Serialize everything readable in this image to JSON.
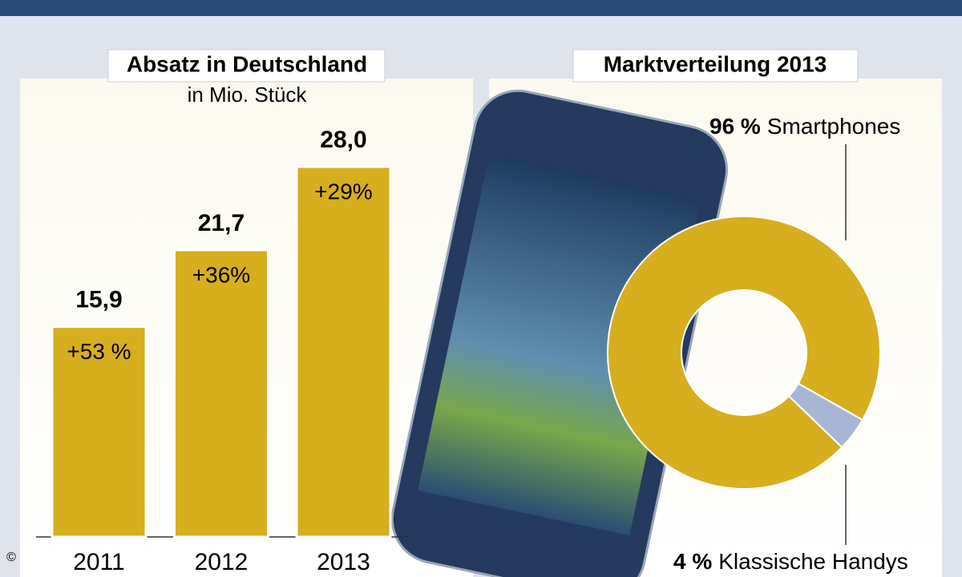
{
  "chart_data": [
    {
      "type": "bar",
      "title": "Absatz in Deutschland",
      "subtitle": "in Mio. Stück",
      "categories": [
        "2011",
        "2012",
        "2013"
      ],
      "values": [
        15.9,
        21.7,
        28.0
      ],
      "value_labels": [
        "15,9",
        "21,7",
        "28,0"
      ],
      "annotations": [
        "+53 %",
        "+36%",
        "+29%"
      ],
      "color": "#d6ae1e"
    },
    {
      "type": "pie",
      "title": "Marktverteilung 2013",
      "labels": [
        "Smartphones",
        "Klassische Handys"
      ],
      "values": [
        96,
        4
      ],
      "value_labels": [
        "96 %",
        "4 %"
      ],
      "colors": [
        "#d6ae1e",
        "#a8b6d6"
      ]
    }
  ],
  "copyright": "©"
}
